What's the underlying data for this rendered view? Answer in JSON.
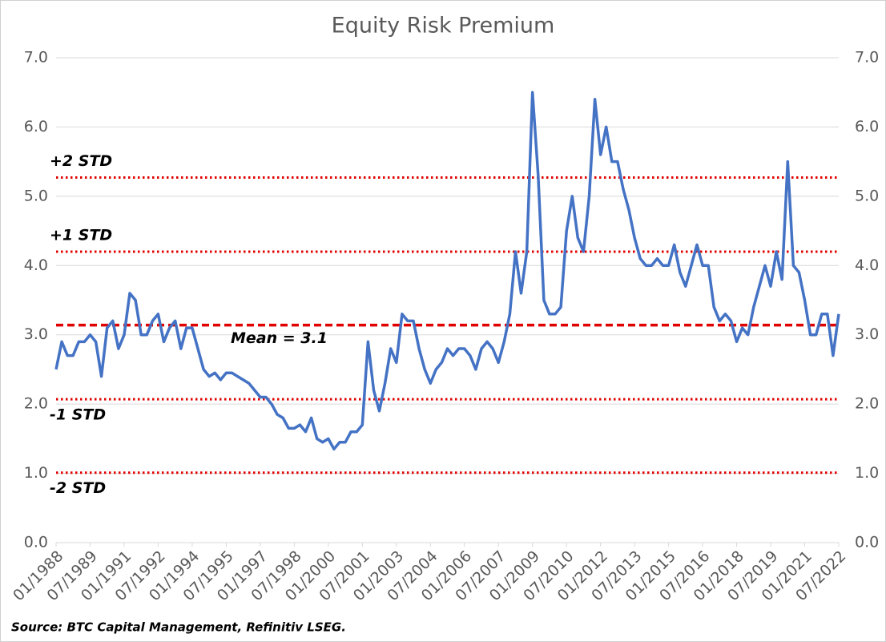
{
  "chart_data": {
    "type": "line",
    "title": "Equity Risk Premium",
    "source": "Source: BTC Capital Management, Refinitiv LSEG.",
    "color": "#4472c4",
    "x": [
      "01/1988",
      "04/1988",
      "07/1988",
      "10/1988",
      "01/1989",
      "04/1989",
      "07/1989",
      "10/1989",
      "01/1990",
      "04/1990",
      "07/1990",
      "10/1990",
      "01/1991",
      "04/1991",
      "07/1991",
      "10/1991",
      "01/1992",
      "04/1992",
      "07/1992",
      "10/1992",
      "01/1993",
      "04/1993",
      "07/1993",
      "10/1993",
      "01/1994",
      "04/1994",
      "07/1994",
      "10/1994",
      "01/1995",
      "04/1995",
      "07/1995",
      "10/1995",
      "01/1996",
      "04/1996",
      "07/1996",
      "10/1996",
      "01/1997",
      "04/1997",
      "07/1997",
      "10/1997",
      "01/1998",
      "04/1998",
      "07/1998",
      "10/1998",
      "01/1999",
      "04/1999",
      "07/1999",
      "10/1999",
      "01/2000",
      "04/2000",
      "07/2000",
      "10/2000",
      "01/2001",
      "04/2001",
      "07/2001",
      "10/2001",
      "01/2002",
      "04/2002",
      "07/2002",
      "10/2002",
      "01/2003",
      "04/2003",
      "07/2003",
      "10/2003",
      "01/2004",
      "04/2004",
      "07/2004",
      "10/2004",
      "01/2005",
      "04/2005",
      "07/2005",
      "10/2005",
      "01/2006",
      "04/2006",
      "07/2006",
      "10/2006",
      "01/2007",
      "04/2007",
      "07/2007",
      "10/2007",
      "01/2008",
      "04/2008",
      "07/2008",
      "10/2008",
      "01/2009",
      "04/2009",
      "07/2009",
      "10/2009",
      "01/2010",
      "04/2010",
      "07/2010",
      "10/2010",
      "01/2011",
      "04/2011",
      "07/2011",
      "10/2011",
      "01/2012",
      "04/2012",
      "07/2012",
      "10/2012",
      "01/2013",
      "04/2013",
      "07/2013",
      "10/2013",
      "01/2014",
      "04/2014",
      "07/2014",
      "10/2014",
      "01/2015",
      "04/2015",
      "07/2015",
      "10/2015",
      "01/2016",
      "04/2016",
      "07/2016",
      "10/2016",
      "01/2017",
      "04/2017",
      "07/2017",
      "10/2017",
      "01/2018",
      "04/2018",
      "07/2018",
      "10/2018",
      "01/2019",
      "04/2019",
      "07/2019",
      "10/2019",
      "01/2020",
      "04/2020",
      "07/2020",
      "10/2020",
      "01/2021",
      "04/2021",
      "07/2021",
      "10/2021",
      "01/2022",
      "04/2022",
      "07/2022"
    ],
    "values": [
      2.5,
      2.9,
      2.7,
      2.7,
      2.9,
      2.9,
      3.0,
      2.9,
      2.4,
      3.1,
      3.2,
      2.8,
      3.0,
      3.6,
      3.5,
      3.0,
      3.0,
      3.2,
      3.3,
      2.9,
      3.1,
      3.2,
      2.8,
      3.1,
      3.1,
      2.8,
      2.5,
      2.4,
      2.45,
      2.35,
      2.45,
      2.45,
      2.4,
      2.35,
      2.3,
      2.2,
      2.1,
      2.1,
      2.0,
      1.85,
      1.8,
      1.65,
      1.65,
      1.7,
      1.6,
      1.8,
      1.5,
      1.45,
      1.5,
      1.35,
      1.45,
      1.45,
      1.6,
      1.6,
      1.7,
      2.9,
      2.2,
      1.9,
      2.3,
      2.8,
      2.6,
      3.3,
      3.2,
      3.2,
      2.8,
      2.5,
      2.3,
      2.5,
      2.6,
      2.8,
      2.7,
      2.8,
      2.8,
      2.7,
      2.5,
      2.8,
      2.9,
      2.8,
      2.6,
      2.9,
      3.3,
      4.2,
      3.6,
      4.2,
      6.5,
      5.3,
      3.5,
      3.3,
      3.3,
      3.4,
      4.5,
      5.0,
      4.4,
      4.2,
      5.0,
      6.4,
      5.6,
      6.0,
      5.5,
      5.5,
      5.1,
      4.8,
      4.4,
      4.1,
      4.0,
      4.0,
      4.1,
      4.0,
      4.0,
      4.3,
      3.9,
      3.7,
      4.0,
      4.3,
      4.0,
      4.0,
      3.4,
      3.2,
      3.3,
      3.2,
      2.9,
      3.1,
      3.0,
      3.4,
      3.7,
      4.0,
      3.7,
      4.2,
      3.8,
      5.5,
      4.0,
      3.9,
      3.5,
      3.0,
      3.0,
      3.3,
      3.3,
      2.7,
      3.3
    ],
    "xticks": [
      "01/1988",
      "07/1989",
      "01/1991",
      "07/1992",
      "01/1994",
      "07/1995",
      "01/1997",
      "07/1998",
      "01/2000",
      "07/2001",
      "01/2003",
      "07/2004",
      "01/2006",
      "07/2007",
      "01/2009",
      "07/2010",
      "01/2012",
      "07/2013",
      "01/2015",
      "07/2016",
      "01/2018",
      "07/2019",
      "01/2021",
      "07/2022"
    ],
    "ylim": [
      0,
      7
    ],
    "yticks": [
      {
        "value": 0,
        "label": "0.0"
      },
      {
        "value": 1,
        "label": "1.0"
      },
      {
        "value": 2,
        "label": "2.0"
      },
      {
        "value": 3,
        "label": "3.0"
      },
      {
        "value": 4,
        "label": "4.0"
      },
      {
        "value": 5,
        "label": "5.0"
      },
      {
        "value": 6,
        "label": "6.0"
      },
      {
        "value": 7,
        "label": "7.0"
      }
    ],
    "y2lim": [
      0,
      7
    ],
    "y2ticks": [
      {
        "value": 0,
        "label": "0.0"
      },
      {
        "value": 1,
        "label": "1.0"
      },
      {
        "value": 2,
        "label": "2.0"
      },
      {
        "value": 3,
        "label": "3.0"
      },
      {
        "value": 4,
        "label": "4.0"
      },
      {
        "value": 5,
        "label": "5.0"
      },
      {
        "value": 6,
        "label": "6.0"
      },
      {
        "value": 7,
        "label": "7.0"
      }
    ],
    "grid": true,
    "reference_lines": [
      {
        "label": "+2 STD",
        "value": 5.27,
        "style": "dotted",
        "color": "#e00000"
      },
      {
        "label": "+1 STD",
        "value": 4.2,
        "style": "dotted",
        "color": "#e00000"
      },
      {
        "label": "Mean = 3.1",
        "value": 3.14,
        "style": "dashed",
        "color": "#e00000"
      },
      {
        "label": "-1 STD",
        "value": 2.07,
        "style": "dotted",
        "color": "#e00000"
      },
      {
        "label": "-2 STD",
        "value": 1.01,
        "style": "dotted",
        "color": "#e00000"
      }
    ]
  }
}
